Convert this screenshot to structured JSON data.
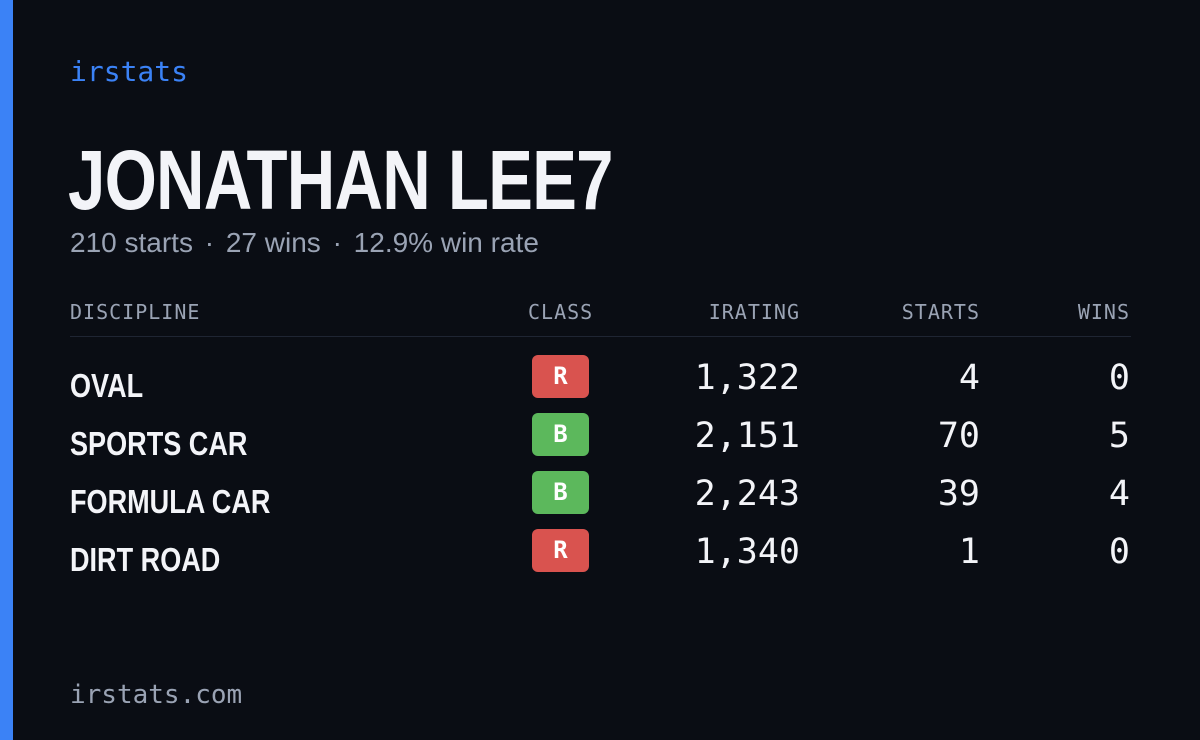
{
  "brand": "irstats",
  "driver": {
    "name": "JONATHAN LEE7",
    "starts": "210 starts",
    "wins": "27 wins",
    "win_rate": "12.9% win rate",
    "separator": "·"
  },
  "table": {
    "headers": {
      "discipline": "DISCIPLINE",
      "class": "CLASS",
      "irating": "IRATING",
      "starts": "STARTS",
      "wins": "WINS"
    },
    "rows": [
      {
        "discipline": "OVAL",
        "class": "R",
        "class_color": "#d9534f",
        "irating": "1,322",
        "starts": "4",
        "wins": "0"
      },
      {
        "discipline": "SPORTS CAR",
        "class": "B",
        "class_color": "#5cb85c",
        "irating": "2,151",
        "starts": "70",
        "wins": "5"
      },
      {
        "discipline": "FORMULA CAR",
        "class": "B",
        "class_color": "#5cb85c",
        "irating": "2,243",
        "starts": "39",
        "wins": "4"
      },
      {
        "discipline": "DIRT ROAD",
        "class": "R",
        "class_color": "#d9534f",
        "irating": "1,340",
        "starts": "1",
        "wins": "0"
      }
    ]
  },
  "footer": "irstats.com",
  "colors": {
    "accent": "#3b82f6",
    "background": "#0a0d14",
    "text_primary": "#f3f4f8",
    "text_muted": "#9aa3b4"
  }
}
